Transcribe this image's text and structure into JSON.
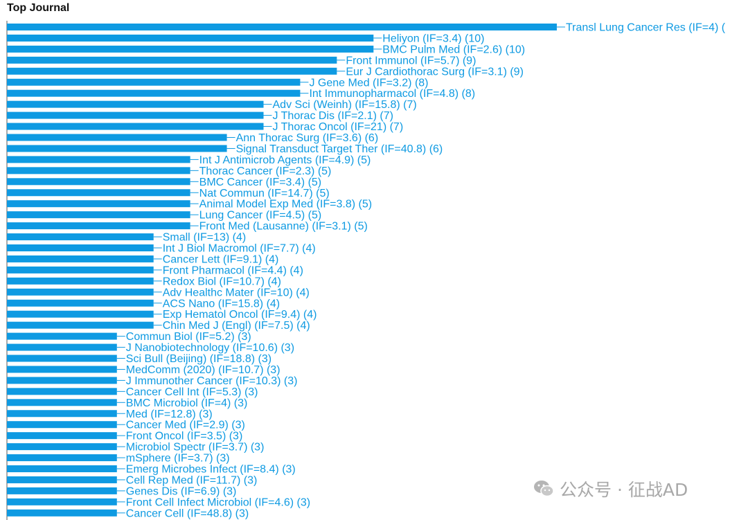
{
  "title": "Top Journal",
  "watermark": {
    "text": "公众号 · 征战AD",
    "icon": "wechat-icon",
    "color": "#a8a8a8"
  },
  "colors": {
    "bar": "#0e9ae2",
    "label": "#0e9ae2",
    "axis": "#555555"
  },
  "chart_data": {
    "type": "bar",
    "orientation": "horizontal",
    "title": "Top Journal",
    "xlabel": "",
    "ylabel": "",
    "grid": false,
    "xlim": [
      0,
      15
    ],
    "categories": [
      "Transl Lung Cancer Res (IF=4) (",
      "Heliyon (IF=3.4) (10)",
      "BMC Pulm Med (IF=2.6) (10)",
      "Front Immunol (IF=5.7) (9)",
      "Eur J Cardiothorac Surg (IF=3.1) (9)",
      "J Gene Med (IF=3.2) (8)",
      "Int Immunopharmacol (IF=4.8) (8)",
      "Adv Sci (Weinh) (IF=15.8) (7)",
      "J Thorac Dis (IF=2.1) (7)",
      "J Thorac Oncol (IF=21) (7)",
      "Ann Thorac Surg (IF=3.6) (6)",
      "Signal Transduct Target Ther (IF=40.8) (6)",
      "Int J Antimicrob Agents (IF=4.9) (5)",
      "Thorac Cancer (IF=2.3) (5)",
      "BMC Cancer (IF=3.4) (5)",
      "Nat Commun (IF=14.7) (5)",
      "Animal Model Exp Med (IF=3.8) (5)",
      "Lung Cancer (IF=4.5) (5)",
      "Front Med (Lausanne) (IF=3.1) (5)",
      "Small (IF=13) (4)",
      "Int J Biol Macromol (IF=7.7) (4)",
      "Cancer Lett (IF=9.1) (4)",
      "Front Pharmacol (IF=4.4) (4)",
      "Redox Biol (IF=10.7) (4)",
      "Adv Healthc Mater (IF=10) (4)",
      "ACS Nano (IF=15.8) (4)",
      "Exp Hematol Oncol (IF=9.4) (4)",
      "Chin Med J (Engl) (IF=7.5) (4)",
      "Commun Biol (IF=5.2) (3)",
      "J Nanobiotechnology (IF=10.6) (3)",
      "Sci Bull (Beijing) (IF=18.8) (3)",
      "MedComm (2020) (IF=10.7) (3)",
      "J Immunother Cancer (IF=10.3) (3)",
      "Cancer Cell Int (IF=5.3) (3)",
      "BMC Microbiol (IF=4) (3)",
      "Med (IF=12.8) (3)",
      "Cancer Med (IF=2.9) (3)",
      "Front Oncol (IF=3.5) (3)",
      "Microbiol Spectr (IF=3.7) (3)",
      "mSphere (IF=3.7) (3)",
      "Emerg Microbes Infect (IF=8.4) (3)",
      "Cell Rep Med (IF=11.7) (3)",
      "Genes Dis (IF=6.9) (3)",
      "Front Cell Infect Microbiol (IF=4.6) (3)",
      "Cancer Cell (IF=48.8) (3)"
    ],
    "values": [
      15,
      10,
      10,
      9,
      9,
      8,
      8,
      7,
      7,
      7,
      6,
      6,
      5,
      5,
      5,
      5,
      5,
      5,
      5,
      4,
      4,
      4,
      4,
      4,
      4,
      4,
      4,
      4,
      3,
      3,
      3,
      3,
      3,
      3,
      3,
      3,
      3,
      3,
      3,
      3,
      3,
      3,
      3,
      3,
      3
    ]
  }
}
